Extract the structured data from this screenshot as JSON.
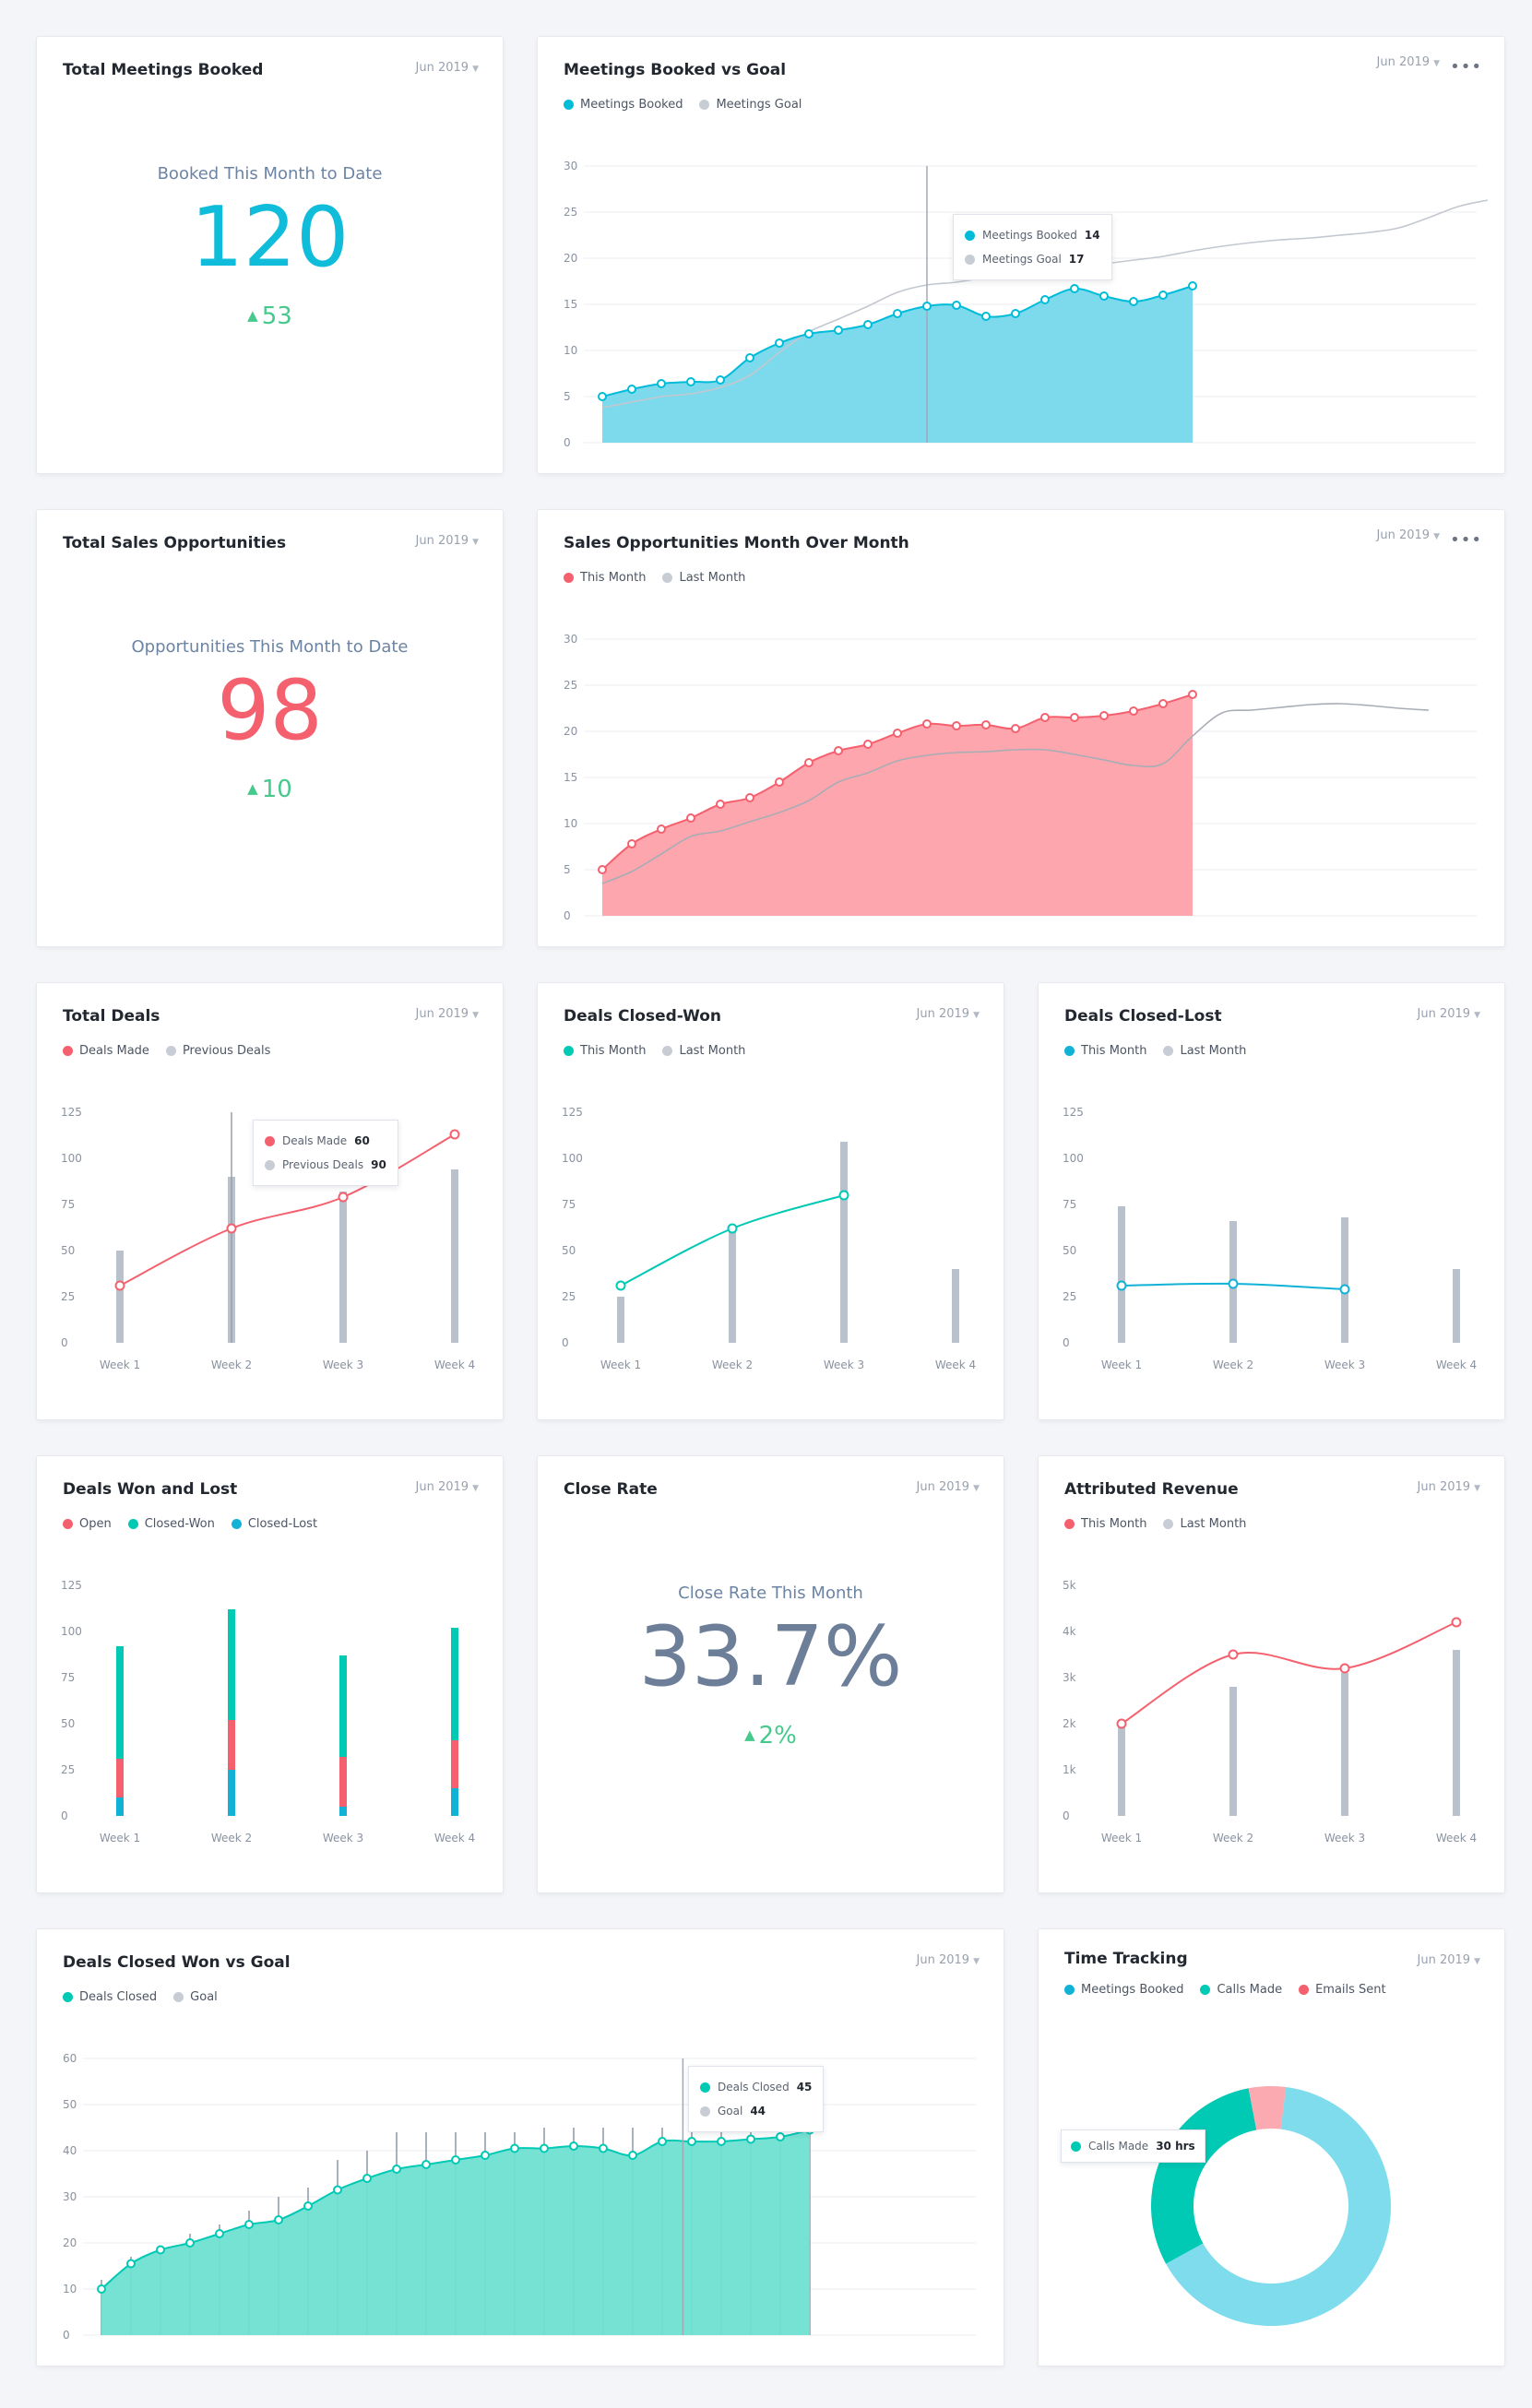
{
  "colors": {
    "teal": "#00bcd9",
    "teal_fill": "#7dd9ec",
    "gray": "#b9c1cd",
    "red": "#f5606e",
    "red_fill": "#fda6ae",
    "green": "#00c9b4",
    "green_fill": "#6fe0d2",
    "blue": "#11b2d6",
    "kpi_gray": "#6c7e98",
    "up": "#46c98c"
  },
  "cards": {
    "total_meetings": {
      "title": "Total Meetings Booked",
      "date": "Jun 2019",
      "label": "Booked This Month to Date",
      "value": "120",
      "change": "53"
    },
    "meetings_vs_goal": {
      "title": "Meetings Booked vs Goal",
      "date": "Jun 2019",
      "legend": [
        "Meetings Booked",
        "Meetings Goal"
      ],
      "tooltip": [
        {
          "label": "Meetings Booked",
          "value": "14"
        },
        {
          "label": "Meetings Goal",
          "value": "17"
        }
      ]
    },
    "total_opps": {
      "title": "Total Sales Opportunities",
      "date": "Jun 2019",
      "label": "Opportunities This Month to Date",
      "value": "98",
      "change": "10"
    },
    "opps_mom": {
      "title": "Sales Opportunities Month Over Month",
      "date": "Jun 2019",
      "legend": [
        "This Month",
        "Last Month"
      ]
    },
    "total_deals": {
      "title": "Total Deals",
      "date": "Jun 2019",
      "legend": [
        "Deals Made",
        "Previous Deals"
      ],
      "tooltip": [
        {
          "label": "Deals Made",
          "value": "60"
        },
        {
          "label": "Previous Deals",
          "value": "90"
        }
      ]
    },
    "closed_won": {
      "title": "Deals Closed-Won",
      "date": "Jun 2019",
      "legend": [
        "This Month",
        "Last Month"
      ]
    },
    "closed_lost": {
      "title": "Deals Closed-Lost",
      "date": "Jun 2019",
      "legend": [
        "This Month",
        "Last Month"
      ]
    },
    "won_lost": {
      "title": "Deals Won and Lost",
      "date": "Jun 2019",
      "legend": [
        "Open",
        "Closed-Won",
        "Closed-Lost"
      ]
    },
    "close_rate": {
      "title": "Close Rate",
      "date": "Jun 2019",
      "label": "Close Rate This Month",
      "value": "33.7%",
      "change": "2%"
    },
    "attributed_revenue": {
      "title": "Attributed Revenue",
      "date": "Jun 2019",
      "legend": [
        "This Month",
        "Last Month"
      ]
    },
    "closed_won_goal": {
      "title": "Deals Closed Won vs Goal",
      "date": "Jun 2019",
      "legend": [
        "Deals Closed",
        "Goal"
      ],
      "tooltip": [
        {
          "label": "Deals Closed",
          "value": "45"
        },
        {
          "label": "Goal",
          "value": "44"
        }
      ]
    },
    "time_tracking": {
      "title": "Time Tracking",
      "date": "Jun 2019",
      "legend": [
        "Meetings Booked",
        "Calls Made",
        "Emails Sent"
      ],
      "tooltip": [
        {
          "label": "Calls Made",
          "value": "30 hrs"
        }
      ]
    }
  },
  "chart_data": [
    {
      "id": "meetings_vs_goal",
      "type": "area",
      "ylim": [
        0,
        30
      ],
      "yticks": [
        "0",
        "5",
        "10",
        "15",
        "20",
        "25",
        "30"
      ],
      "series": [
        {
          "name": "Meetings Booked",
          "values": [
            5,
            5.8,
            6.4,
            6.6,
            6.8,
            9.2,
            10.8,
            11.8,
            12.2,
            12.8,
            14,
            14.8,
            14.9,
            13.7,
            14,
            15.5,
            16.7,
            15.9,
            15.3,
            16,
            17
          ]
        },
        {
          "name": "Meetings Goal",
          "values": [
            3.8,
            4.4,
            5,
            5.3,
            6,
            7.3,
            9.8,
            12,
            13.4,
            14.8,
            16.3,
            17.1,
            17.4,
            17.9,
            18.3,
            18.8,
            19.1,
            19.4,
            19.8,
            20.2,
            20.8,
            21.3,
            21.7,
            22,
            22.2,
            22.5,
            22.8,
            23.3,
            24.4,
            25.6,
            26.3
          ]
        }
      ]
    },
    {
      "id": "opps_mom",
      "type": "area",
      "ylim": [
        0,
        30
      ],
      "yticks": [
        "0",
        "5",
        "10",
        "15",
        "20",
        "25",
        "30"
      ],
      "series": [
        {
          "name": "This Month",
          "values": [
            5,
            7.8,
            9.4,
            10.6,
            12.1,
            12.8,
            14.5,
            16.6,
            17.9,
            18.6,
            19.8,
            20.8,
            20.6,
            20.7,
            20.3,
            21.5,
            21.5,
            21.7,
            22.2,
            23,
            24
          ]
        },
        {
          "name": "Last Month",
          "values": [
            3.5,
            4.8,
            6.7,
            8.6,
            9.2,
            10.2,
            11.2,
            12.5,
            14.5,
            15.5,
            16.8,
            17.4,
            17.7,
            17.8,
            18,
            18,
            17.5,
            16.9,
            16.3,
            16.5,
            19.5,
            22,
            22.3,
            22.6,
            22.9,
            23,
            22.8,
            22.5,
            22.3
          ]
        }
      ]
    },
    {
      "id": "total_deals",
      "type": "bar+line",
      "ylim": [
        0,
        125
      ],
      "yticks": [
        "0",
        "25",
        "50",
        "75",
        "100",
        "125"
      ],
      "categories": [
        "Week 1",
        "Week 2",
        "Week 3",
        "Week 4"
      ],
      "series": [
        {
          "name": "Deals Made",
          "values": [
            31,
            62,
            79,
            113
          ]
        },
        {
          "name": "Previous Deals",
          "values": [
            50,
            90,
            82,
            94
          ]
        }
      ]
    },
    {
      "id": "closed_won",
      "type": "bar+line",
      "ylim": [
        0,
        125
      ],
      "yticks": [
        "0",
        "25",
        "50",
        "75",
        "100",
        "125"
      ],
      "categories": [
        "Week 1",
        "Week 2",
        "Week 3",
        "Week 4"
      ],
      "series": [
        {
          "name": "This Month",
          "values": [
            31,
            62,
            80,
            null
          ]
        },
        {
          "name": "Last Month",
          "values": [
            25,
            63,
            109,
            40
          ]
        }
      ]
    },
    {
      "id": "closed_lost",
      "type": "bar+line",
      "ylim": [
        0,
        125
      ],
      "yticks": [
        "0",
        "25",
        "50",
        "75",
        "100",
        "125"
      ],
      "categories": [
        "Week 1",
        "Week 2",
        "Week 3",
        "Week 4"
      ],
      "series": [
        {
          "name": "This Month",
          "values": [
            31,
            32,
            29,
            null
          ]
        },
        {
          "name": "Last Month",
          "values": [
            74,
            66,
            68,
            40
          ]
        }
      ]
    },
    {
      "id": "won_lost",
      "type": "stacked-bar",
      "ylim": [
        0,
        125
      ],
      "yticks": [
        "0",
        "25",
        "50",
        "75",
        "100",
        "125"
      ],
      "categories": [
        "Week 1",
        "Week 2",
        "Week 3",
        "Week 4"
      ],
      "series": [
        {
          "name": "Closed-Lost",
          "values": [
            10,
            25,
            5,
            15
          ]
        },
        {
          "name": "Open",
          "values": [
            21,
            27,
            27,
            26
          ]
        },
        {
          "name": "Closed-Won",
          "values": [
            61,
            60,
            55,
            61
          ]
        }
      ]
    },
    {
      "id": "attributed_revenue",
      "type": "bar+line",
      "ylim": [
        0,
        5
      ],
      "yticks": [
        "0",
        "1k",
        "2k",
        "3k",
        "4k",
        "5k"
      ],
      "categories": [
        "Week 1",
        "Week 2",
        "Week 3",
        "Week 4"
      ],
      "series": [
        {
          "name": "This Month",
          "values": [
            2,
            3.5,
            3.2,
            4.2
          ]
        },
        {
          "name": "Last Month",
          "values": [
            2,
            2.8,
            3.1,
            3.6
          ]
        }
      ]
    },
    {
      "id": "closed_won_goal",
      "type": "area",
      "ylim": [
        0,
        60
      ],
      "yticks": [
        "0",
        "10",
        "20",
        "30",
        "40",
        "50",
        "60"
      ],
      "series": [
        {
          "name": "Deals Closed",
          "values": [
            10,
            15.5,
            18.5,
            20,
            22,
            24,
            25,
            28,
            31.5,
            34,
            36,
            37,
            38,
            39,
            40.5,
            40.5,
            41,
            40.5,
            39,
            42,
            42,
            42,
            42.5,
            43,
            44.5
          ]
        },
        {
          "name": "Goal",
          "values": [
            12,
            17,
            19,
            22,
            24,
            27,
            30,
            32,
            38,
            40,
            44,
            44,
            44,
            44,
            44,
            45,
            45,
            45,
            45,
            45,
            44,
            44,
            44,
            44,
            44
          ]
        }
      ]
    },
    {
      "id": "time_tracking",
      "type": "pie",
      "categories": [
        "Meetings Booked",
        "Calls Made",
        "Emails Sent"
      ],
      "values": [
        65,
        30,
        5
      ]
    }
  ]
}
